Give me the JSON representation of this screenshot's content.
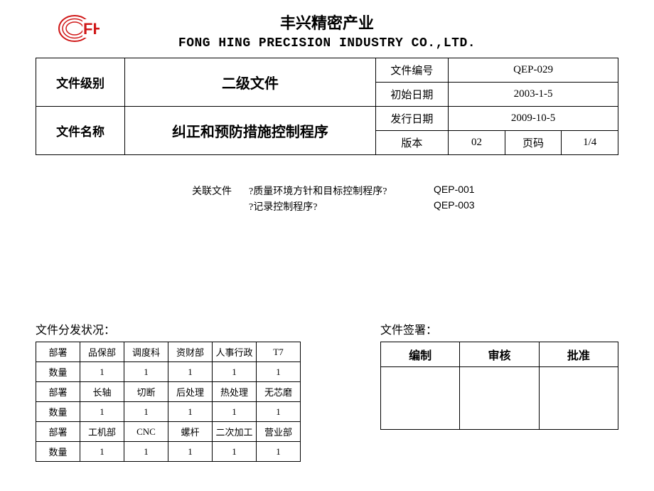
{
  "company": {
    "cn": "丰兴精密产业",
    "en": "FONG HING PRECISION INDUSTRY CO.,LTD.",
    "logo_text": "FH",
    "logo_color": "#d01818"
  },
  "header": {
    "level_label": "文件级别",
    "level_value": "二级文件",
    "name_label": "文件名称",
    "name_value": "纠正和预防措施控制程序",
    "docno_label": "文件编号",
    "docno_value": "QEP-029",
    "initdate_label": "初始日期",
    "initdate_value": "2003-1-5",
    "issuedate_label": "发行日期",
    "issuedate_value": "2009-10-5",
    "version_label": "版本",
    "version_value": "02",
    "page_label": "页码",
    "page_value": "1/4"
  },
  "related": {
    "label": "关联文件",
    "rows": [
      {
        "txt": "?质量环境方针和目标控制程序?",
        "code": "QEP-001"
      },
      {
        "txt": "?记录控制程序?",
        "code": "QEP-003"
      }
    ]
  },
  "distribution": {
    "title": "文件分发状况：",
    "dept_label": "部署",
    "qty_label": "数量",
    "rows": [
      {
        "depts": [
          "品保部",
          "调度科",
          "资财部",
          "人事行政",
          "T7"
        ],
        "qtys": [
          "1",
          "1",
          "1",
          "1",
          "1"
        ]
      },
      {
        "depts": [
          "长轴",
          "切断",
          "后处理",
          "热处理",
          "无芯磨"
        ],
        "qtys": [
          "1",
          "1",
          "1",
          "1",
          "1"
        ]
      },
      {
        "depts": [
          "工机部",
          "CNC",
          "螺杆",
          "二次加工",
          "营业部"
        ],
        "qtys": [
          "1",
          "1",
          "1",
          "1",
          "1"
        ]
      }
    ]
  },
  "signature": {
    "title": "文件签署：",
    "cols": [
      "编制",
      "审核",
      "批准"
    ]
  }
}
